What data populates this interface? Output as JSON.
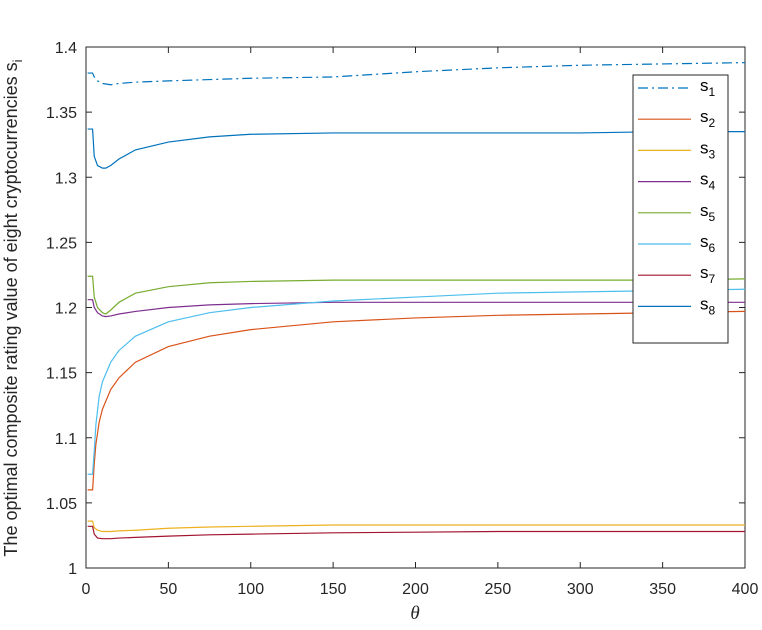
{
  "chart_data": {
    "type": "line",
    "title": "",
    "xlabel": "θ",
    "ylabel": "The optimal composite rating value of eight cryptocurrencies s",
    "ylabel_subscript": "i",
    "xlim": [
      0,
      400
    ],
    "ylim": [
      1,
      1.4
    ],
    "xticks": [
      0,
      50,
      100,
      150,
      200,
      250,
      300,
      350,
      400
    ],
    "yticks": [
      1,
      1.05,
      1.1,
      1.15,
      1.2,
      1.25,
      1.3,
      1.35,
      1.4
    ],
    "ytick_labels": [
      "1",
      "1.05",
      "1.1",
      "1.15",
      "1.2",
      "1.25",
      "1.3",
      "1.35",
      "1.4"
    ],
    "grid": false,
    "legend_position": "top-right",
    "series": [
      {
        "name": "s",
        "sub": "1",
        "color": "#0072BD",
        "dash": "dashdot",
        "x": [
          1,
          4,
          5,
          7,
          10,
          15,
          20,
          30,
          50,
          75,
          100,
          150,
          200,
          250,
          300,
          350,
          400
        ],
        "y": [
          1.38,
          1.38,
          1.377,
          1.374,
          1.372,
          1.371,
          1.372,
          1.373,
          1.374,
          1.375,
          1.376,
          1.377,
          1.381,
          1.384,
          1.386,
          1.387,
          1.388
        ]
      },
      {
        "name": "s",
        "sub": "2",
        "color": "#D95319",
        "dash": "solid",
        "x": [
          1,
          4,
          5,
          6,
          8,
          10,
          15,
          20,
          30,
          50,
          75,
          100,
          150,
          200,
          250,
          300,
          350,
          400
        ],
        "y": [
          1.06,
          1.06,
          1.08,
          1.095,
          1.112,
          1.122,
          1.137,
          1.146,
          1.158,
          1.17,
          1.178,
          1.183,
          1.189,
          1.192,
          1.194,
          1.195,
          1.196,
          1.197
        ]
      },
      {
        "name": "s",
        "sub": "3",
        "color": "#EDB120",
        "dash": "solid",
        "x": [
          1,
          4,
          5,
          7,
          10,
          15,
          20,
          30,
          50,
          75,
          100,
          150,
          200,
          250,
          300,
          350,
          400
        ],
        "y": [
          1.036,
          1.036,
          1.031,
          1.029,
          1.028,
          1.028,
          1.0285,
          1.029,
          1.0305,
          1.0315,
          1.032,
          1.033,
          1.033,
          1.033,
          1.033,
          1.033,
          1.033
        ]
      },
      {
        "name": "s",
        "sub": "4",
        "color": "#7E2F8E",
        "dash": "solid",
        "x": [
          1,
          4,
          5,
          7,
          10,
          12,
          15,
          20,
          30,
          50,
          75,
          100,
          150,
          200,
          250,
          300,
          350,
          400
        ],
        "y": [
          1.206,
          1.206,
          1.2,
          1.196,
          1.1935,
          1.193,
          1.1935,
          1.195,
          1.197,
          1.2,
          1.202,
          1.203,
          1.204,
          1.204,
          1.204,
          1.204,
          1.204,
          1.204
        ]
      },
      {
        "name": "s",
        "sub": "5",
        "color": "#77AC30",
        "dash": "solid",
        "x": [
          1,
          4,
          5,
          7,
          10,
          12,
          15,
          20,
          30,
          50,
          75,
          100,
          150,
          200,
          250,
          300,
          350,
          400
        ],
        "y": [
          1.224,
          1.224,
          1.208,
          1.2,
          1.196,
          1.195,
          1.198,
          1.204,
          1.211,
          1.216,
          1.219,
          1.22,
          1.221,
          1.221,
          1.221,
          1.221,
          1.221,
          1.222
        ]
      },
      {
        "name": "s",
        "sub": "6",
        "color": "#4DBEEE",
        "dash": "solid",
        "x": [
          1,
          4,
          5,
          6,
          8,
          10,
          15,
          20,
          30,
          50,
          75,
          100,
          150,
          200,
          250,
          300,
          350,
          400
        ],
        "y": [
          1.072,
          1.072,
          1.09,
          1.11,
          1.132,
          1.143,
          1.158,
          1.167,
          1.178,
          1.189,
          1.196,
          1.2,
          1.205,
          1.208,
          1.211,
          1.212,
          1.213,
          1.214
        ]
      },
      {
        "name": "s",
        "sub": "7",
        "color": "#A2142F",
        "dash": "solid",
        "x": [
          1,
          4,
          5,
          7,
          10,
          15,
          20,
          30,
          50,
          75,
          100,
          150,
          200,
          250,
          300,
          350,
          400
        ],
        "y": [
          1.032,
          1.032,
          1.026,
          1.023,
          1.0225,
          1.0225,
          1.023,
          1.0235,
          1.0245,
          1.0255,
          1.026,
          1.027,
          1.0275,
          1.028,
          1.028,
          1.028,
          1.028
        ]
      },
      {
        "name": "s",
        "sub": "8",
        "color": "#0072BD",
        "dash": "solid",
        "x": [
          1,
          4,
          5,
          7,
          10,
          12,
          15,
          20,
          30,
          50,
          75,
          100,
          150,
          200,
          250,
          300,
          350,
          400
        ],
        "y": [
          1.337,
          1.337,
          1.316,
          1.309,
          1.307,
          1.307,
          1.309,
          1.314,
          1.321,
          1.327,
          1.331,
          1.333,
          1.334,
          1.334,
          1.334,
          1.334,
          1.335,
          1.335
        ]
      }
    ]
  }
}
